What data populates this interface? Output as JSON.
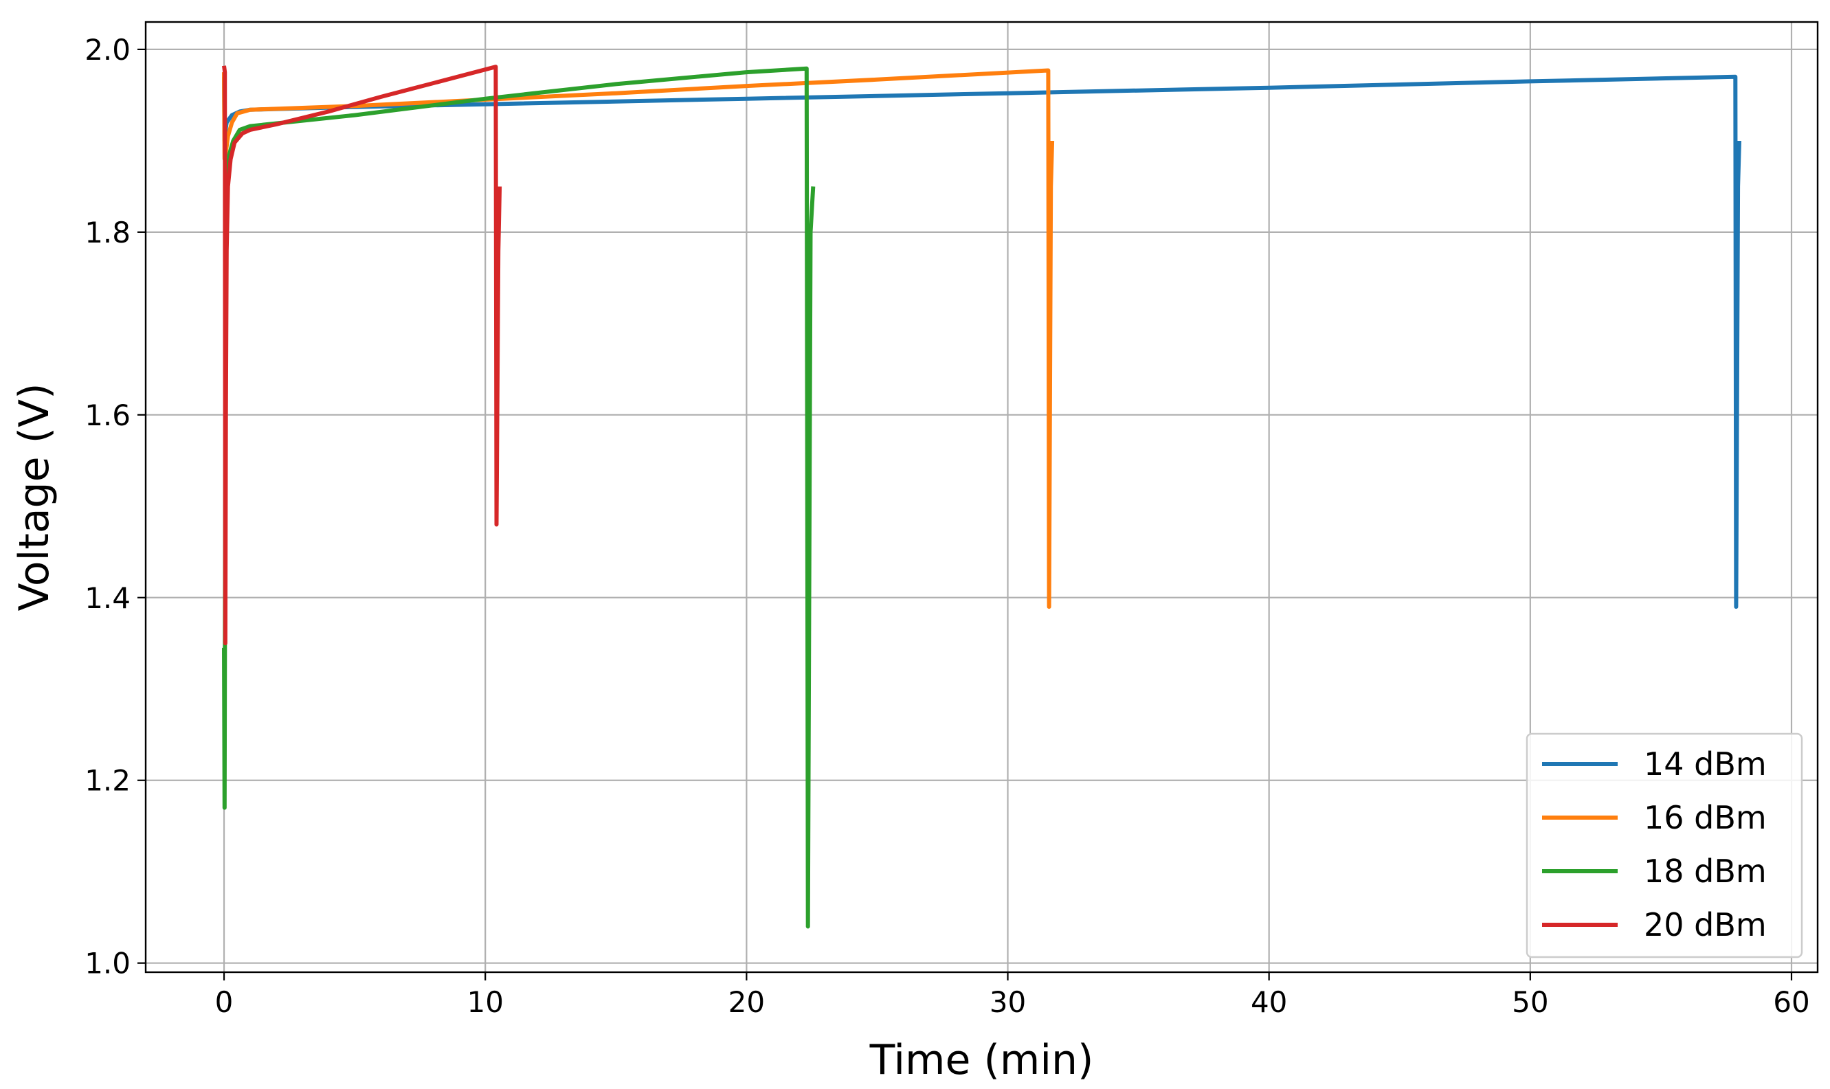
{
  "chart_data": {
    "type": "line",
    "title": "",
    "xlabel": "Time (min)",
    "ylabel": "Voltage (V)",
    "xlim": [
      -3,
      61
    ],
    "ylim": [
      0.99,
      2.03
    ],
    "xticks": [
      0,
      10,
      20,
      30,
      40,
      50,
      60
    ],
    "yticks": [
      1.0,
      1.2,
      1.4,
      1.6,
      1.8,
      2.0
    ],
    "xtick_labels": [
      "0",
      "10",
      "20",
      "30",
      "40",
      "50",
      "60"
    ],
    "ytick_labels": [
      "1.0",
      "1.2",
      "1.4",
      "1.6",
      "1.8",
      "2.0"
    ],
    "grid": true,
    "legend_position": "lower right",
    "series": [
      {
        "name": "14 dBm",
        "color": "#1f77b4",
        "points": [
          [
            0.0,
            1.97
          ],
          [
            0.02,
            1.9
          ],
          [
            0.05,
            1.91
          ],
          [
            0.1,
            1.92
          ],
          [
            0.3,
            1.928
          ],
          [
            0.6,
            1.932
          ],
          [
            1.0,
            1.934
          ],
          [
            5,
            1.937
          ],
          [
            10,
            1.94
          ],
          [
            20,
            1.946
          ],
          [
            30,
            1.952
          ],
          [
            40,
            1.958
          ],
          [
            50,
            1.965
          ],
          [
            57.85,
            1.97
          ],
          [
            57.88,
            1.39
          ],
          [
            57.95,
            1.85
          ],
          [
            58.0,
            1.9
          ]
        ]
      },
      {
        "name": "16 dBm",
        "color": "#ff7f0e",
        "points": [
          [
            0.0,
            1.975
          ],
          [
            0.02,
            1.88
          ],
          [
            0.08,
            1.89
          ],
          [
            0.15,
            1.905
          ],
          [
            0.3,
            1.92
          ],
          [
            0.5,
            1.93
          ],
          [
            1.0,
            1.934
          ],
          [
            5,
            1.938
          ],
          [
            10,
            1.945
          ],
          [
            15,
            1.952
          ],
          [
            20,
            1.96
          ],
          [
            25,
            1.967
          ],
          [
            31.55,
            1.977
          ],
          [
            31.58,
            1.39
          ],
          [
            31.65,
            1.85
          ],
          [
            31.7,
            1.9
          ]
        ]
      },
      {
        "name": "18 dBm",
        "color": "#2ca02c",
        "points": [
          [
            0.0,
            1.345
          ],
          [
            0.02,
            1.17
          ],
          [
            0.05,
            1.56
          ],
          [
            0.08,
            1.8
          ],
          [
            0.12,
            1.86
          ],
          [
            0.2,
            1.885
          ],
          [
            0.35,
            1.9
          ],
          [
            0.6,
            1.912
          ],
          [
            1.0,
            1.916
          ],
          [
            3,
            1.922
          ],
          [
            5,
            1.928
          ],
          [
            10,
            1.946
          ],
          [
            15,
            1.962
          ],
          [
            20,
            1.975
          ],
          [
            22.3,
            1.979
          ],
          [
            22.35,
            1.04
          ],
          [
            22.45,
            1.8
          ],
          [
            22.55,
            1.85
          ]
        ]
      },
      {
        "name": "20 dBm",
        "color": "#d62728",
        "points": [
          [
            0.0,
            1.982
          ],
          [
            0.03,
            1.975
          ],
          [
            0.05,
            1.35
          ],
          [
            0.07,
            1.6
          ],
          [
            0.1,
            1.78
          ],
          [
            0.15,
            1.85
          ],
          [
            0.25,
            1.88
          ],
          [
            0.4,
            1.898
          ],
          [
            0.7,
            1.908
          ],
          [
            1.0,
            1.912
          ],
          [
            2,
            1.918
          ],
          [
            4,
            1.932
          ],
          [
            6,
            1.948
          ],
          [
            8,
            1.963
          ],
          [
            10.4,
            1.981
          ],
          [
            10.43,
            1.48
          ],
          [
            10.5,
            1.78
          ],
          [
            10.55,
            1.85
          ]
        ]
      }
    ]
  }
}
